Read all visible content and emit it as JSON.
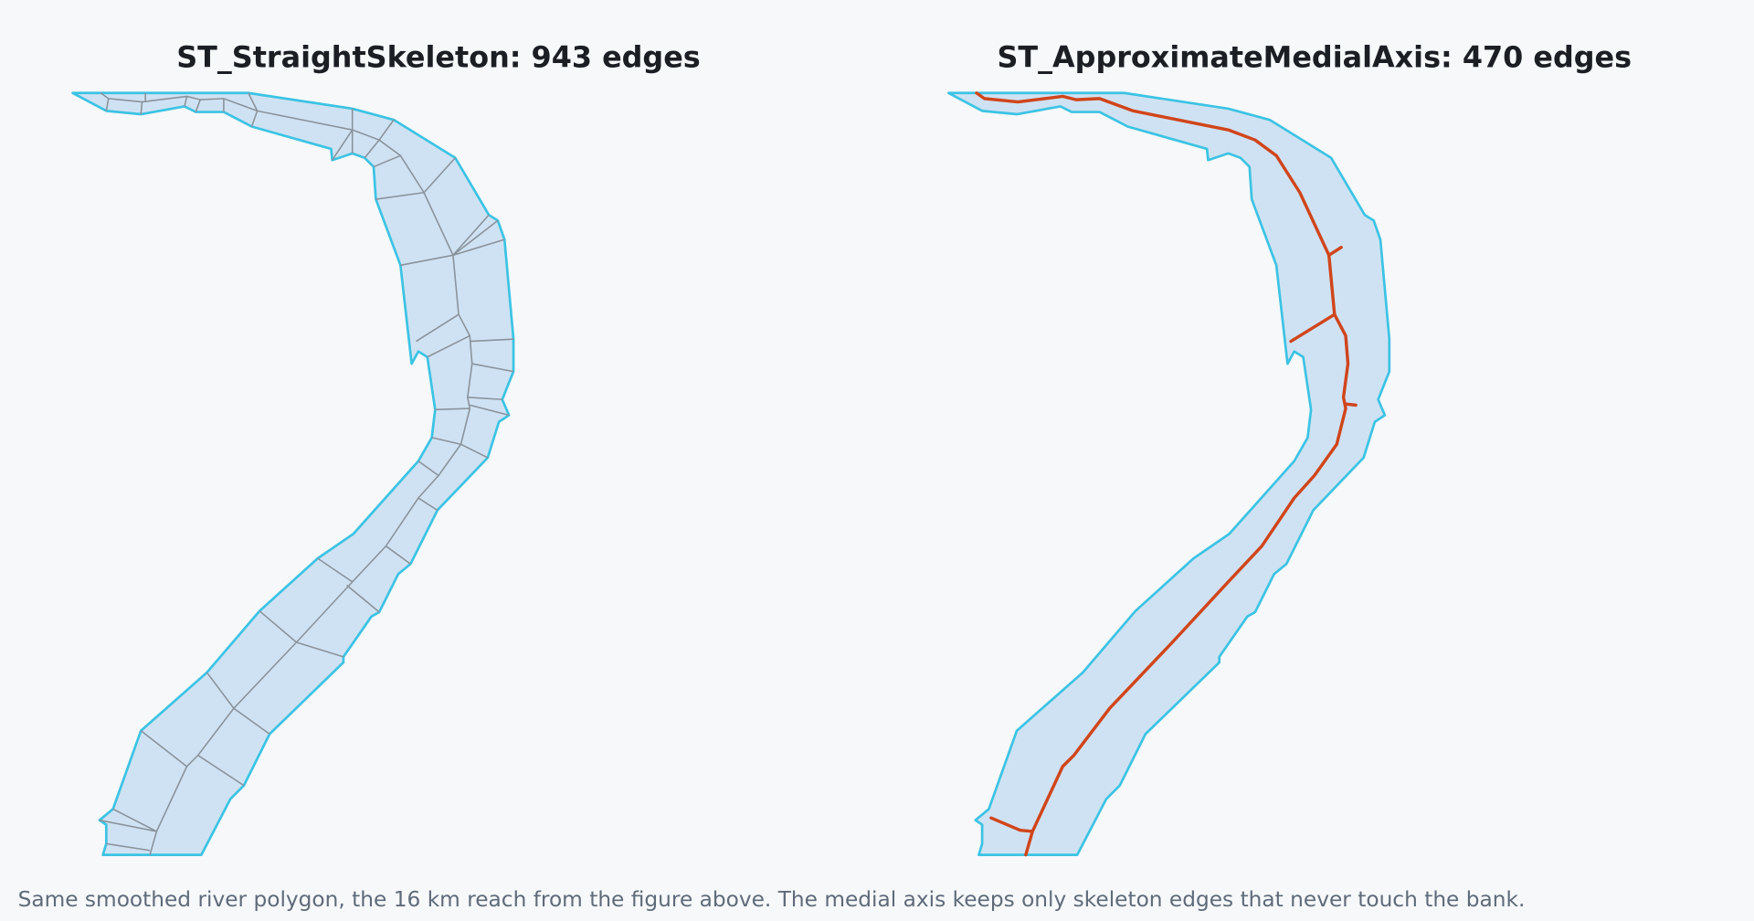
{
  "figure": {
    "panels": [
      {
        "title": "ST_StraightSkeleton: 943 edges"
      },
      {
        "title": "ST_ApproximateMedialAxis: 470 edges"
      }
    ],
    "caption": "Same smoothed river polygon, the 16 km reach from the figure above. The medial axis keeps only skeleton edges that never touch the bank."
  }
}
